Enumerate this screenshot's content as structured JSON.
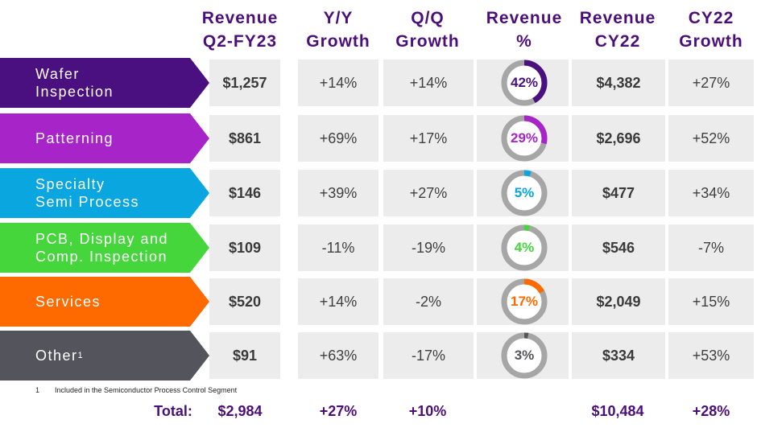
{
  "headers": [
    "Revenue\nQ2-FY23",
    "Y/Y\nGrowth",
    "Q/Q\nGrowth",
    "Revenue\n%",
    "Revenue\nCY22",
    "CY22\nGrowth"
  ],
  "rows": [
    {
      "label": "Wafer\nInspection",
      "sup": "",
      "color": "#4a1080",
      "ring_color": "#4a1080",
      "revenue": "$1,257",
      "yy": "+14%",
      "qq": "+14%",
      "pct_label": "42%",
      "pct": 42,
      "rev_cy22": "$4,382",
      "cy22_growth": "+27%"
    },
    {
      "label": "Patterning",
      "sup": "",
      "color": "#a724c9",
      "ring_color": "#a724c9",
      "revenue": "$861",
      "yy": "+69%",
      "qq": "+17%",
      "pct_label": "29%",
      "pct": 29,
      "rev_cy22": "$2,696",
      "cy22_growth": "+52%"
    },
    {
      "label": "Specialty\nSemi Process",
      "sup": "",
      "color": "#0aa6e0",
      "ring_color": "#0aa6e0",
      "revenue": "$146",
      "yy": "+39%",
      "qq": "+27%",
      "pct_label": "5%",
      "pct": 5,
      "rev_cy22": "$477",
      "cy22_growth": "+34%"
    },
    {
      "label": "PCB, Display and\nComp. Inspection",
      "sup": "",
      "color": "#44d63a",
      "ring_color": "#44d63a",
      "revenue": "$109",
      "yy": "-11%",
      "qq": "-19%",
      "pct_label": "4%",
      "pct": 4,
      "rev_cy22": "$546",
      "cy22_growth": "-7%"
    },
    {
      "label": "Services",
      "sup": "",
      "color": "#ff6a00",
      "ring_color": "#ff6a00",
      "revenue": "$520",
      "yy": "+14%",
      "qq": "-2%",
      "pct_label": "17%",
      "pct": 17,
      "rev_cy22": "$2,049",
      "cy22_growth": "+15%"
    },
    {
      "label": "Other",
      "sup": "1",
      "color": "#54555c",
      "ring_color": "#54555c",
      "revenue": "$91",
      "yy": "+63%",
      "qq": "-17%",
      "pct_label": "3%",
      "pct": 3,
      "rev_cy22": "$334",
      "cy22_growth": "+53%"
    }
  ],
  "footnote": {
    "number": "1",
    "text": "Included in the Semiconductor Process Control Segment"
  },
  "total": {
    "label": "Total:",
    "revenue": "$2,984",
    "yy": "+27%",
    "qq": "+10%",
    "rev_cy22": "$10,484",
    "cy22_growth": "+28%"
  },
  "colors": {
    "header_text": "#4b0f7a",
    "cell_bg": "#ececec",
    "ring_track": "#a6a6a6"
  }
}
